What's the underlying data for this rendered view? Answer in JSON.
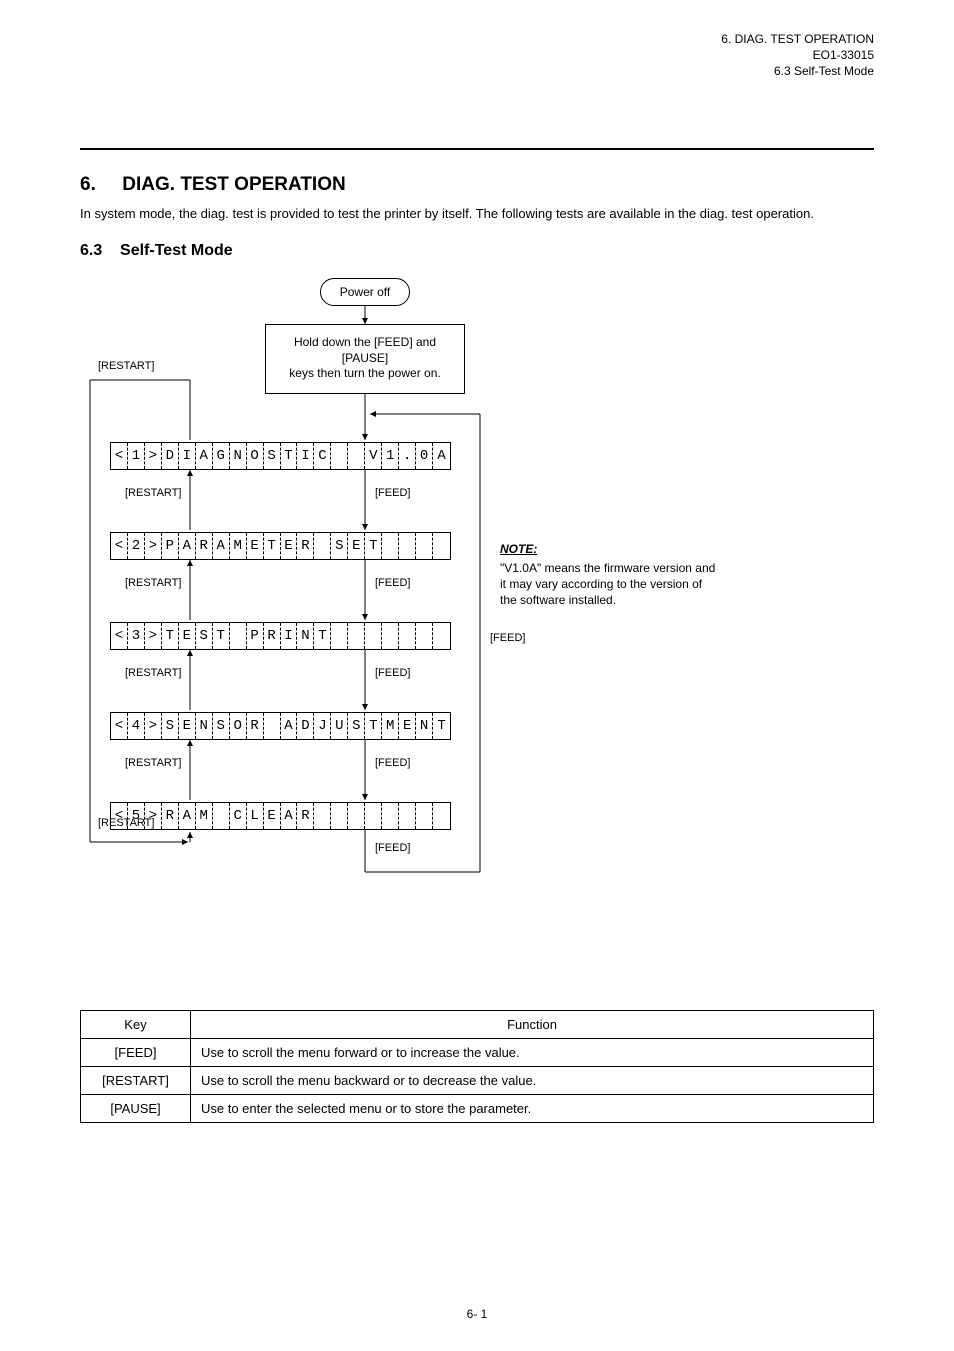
{
  "header": {
    "line1": "6.  DIAG. TEST OPERATION",
    "line2_model": "EO1-33015",
    "line2_section": "6.3   Self-Test Mode"
  },
  "section": {
    "number": "6.",
    "title": "DIAG. TEST OPERATION",
    "para": "In system mode, the diag. test is provided to test the printer by itself.  The following tests are available in the diag. test operation."
  },
  "selftest": {
    "number": "6.3",
    "title": "Self-Test Mode"
  },
  "flow": {
    "terminator": "Power off",
    "process": "Hold down the [FEED] and [PAUSE]\nkeys then turn the power on.",
    "lcd_cells": 20,
    "lcd_rows": [
      "<1>DIAGNOSTIC  V1.0A",
      "<2>PARAMETER SET   ",
      "<3>TEST PRINT      ",
      "<4>SENSOR ADJUSTMENT",
      "<5>RAM CLEAR       "
    ],
    "key_feed": "[FEED]",
    "key_restart": "[RESTART]",
    "note_title": "NOTE:",
    "note_body": "\"V1.0A\" means the firmware version and it may vary according to the version of the software installed."
  },
  "table": {
    "columns": [
      "Key",
      "Function"
    ],
    "rows": [
      [
        "[FEED]",
        "Use to scroll the menu forward or to increase the value."
      ],
      [
        "[RESTART]",
        "Use to scroll the menu backward or to decrease the value."
      ],
      [
        "[PAUSE]",
        "Use to enter the selected menu or to store the parameter."
      ]
    ]
  },
  "page_number": "6- 1",
  "colors": {
    "text": "#000000",
    "bg": "#ffffff",
    "line": "#000000"
  }
}
